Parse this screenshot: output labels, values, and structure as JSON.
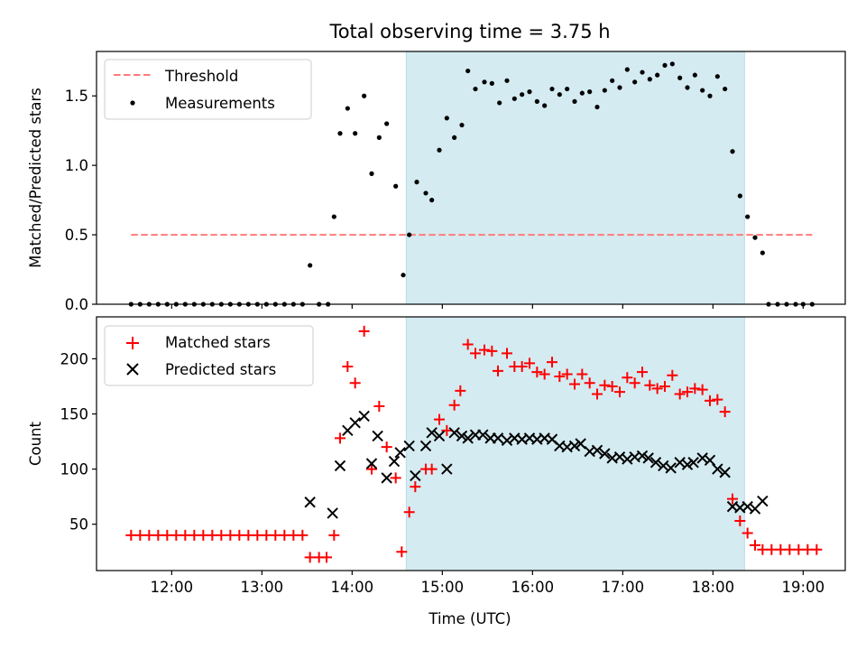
{
  "title": "Total observing time = 3.75 h",
  "colors": {
    "highlight": "#d4ebf1",
    "threshold": "#ff7b7b",
    "matched": "#ff0000",
    "predicted": "#000000",
    "measurement": "#000000"
  },
  "chart_data": [
    {
      "type": "scatter",
      "ylabel": "Matched/Predicted stars",
      "ylim": [
        0,
        1.82
      ],
      "xlim": [
        "11:10",
        "19:28"
      ],
      "yticks": [
        0.0,
        0.5,
        1.0,
        1.5
      ],
      "ytick_labels": [
        "0.0",
        "0.5",
        "1.0",
        "1.5"
      ],
      "highlight_span": [
        "14:36",
        "18:21"
      ],
      "threshold": {
        "value": 0.5,
        "x_range": [
          "11:33",
          "19:06"
        ]
      },
      "legend": {
        "position": "top-left",
        "entries": [
          "Threshold",
          "Measurements"
        ]
      },
      "series": [
        {
          "name": "Measurements",
          "points": [
            [
              "11:33",
              0
            ],
            [
              "11:39",
              0
            ],
            [
              "11:45",
              0
            ],
            [
              "11:51",
              0
            ],
            [
              "11:57",
              0
            ],
            [
              "12:03",
              0
            ],
            [
              "12:09",
              0
            ],
            [
              "12:15",
              0
            ],
            [
              "12:21",
              0
            ],
            [
              "12:27",
              0
            ],
            [
              "12:33",
              0
            ],
            [
              "12:39",
              0
            ],
            [
              "12:45",
              0
            ],
            [
              "12:51",
              0
            ],
            [
              "12:57",
              0
            ],
            [
              "13:03",
              0
            ],
            [
              "13:09",
              0
            ],
            [
              "13:15",
              0
            ],
            [
              "13:21",
              0
            ],
            [
              "13:27",
              0
            ],
            [
              "13:32",
              0.28
            ],
            [
              "13:38",
              0
            ],
            [
              "13:44",
              0
            ],
            [
              "13:48",
              0.63
            ],
            [
              "13:52",
              1.23
            ],
            [
              "13:57",
              1.41
            ],
            [
              "14:02",
              1.23
            ],
            [
              "14:08",
              1.5
            ],
            [
              "14:13",
              0.94
            ],
            [
              "14:18",
              1.2
            ],
            [
              "14:23",
              1.3
            ],
            [
              "14:29",
              0.85
            ],
            [
              "14:34",
              0.21
            ],
            [
              "14:38",
              0.5
            ],
            [
              "14:43",
              0.88
            ],
            [
              "14:49",
              0.8
            ],
            [
              "14:53",
              0.75
            ],
            [
              "14:58",
              1.11
            ],
            [
              "15:03",
              1.34
            ],
            [
              "15:08",
              1.2
            ],
            [
              "15:13",
              1.29
            ],
            [
              "15:17",
              1.68
            ],
            [
              "15:22",
              1.55
            ],
            [
              "15:28",
              1.6
            ],
            [
              "15:33",
              1.59
            ],
            [
              "15:38",
              1.45
            ],
            [
              "15:43",
              1.61
            ],
            [
              "15:48",
              1.48
            ],
            [
              "15:53",
              1.51
            ],
            [
              "15:58",
              1.53
            ],
            [
              "16:03",
              1.46
            ],
            [
              "16:08",
              1.43
            ],
            [
              "16:13",
              1.55
            ],
            [
              "16:18",
              1.51
            ],
            [
              "16:23",
              1.55
            ],
            [
              "16:28",
              1.46
            ],
            [
              "16:33",
              1.52
            ],
            [
              "16:38",
              1.53
            ],
            [
              "16:43",
              1.42
            ],
            [
              "16:48",
              1.54
            ],
            [
              "16:53",
              1.61
            ],
            [
              "16:58",
              1.56
            ],
            [
              "17:03",
              1.69
            ],
            [
              "17:08",
              1.6
            ],
            [
              "17:13",
              1.67
            ],
            [
              "17:18",
              1.62
            ],
            [
              "17:23",
              1.65
            ],
            [
              "17:28",
              1.72
            ],
            [
              "17:33",
              1.73
            ],
            [
              "17:38",
              1.63
            ],
            [
              "17:43",
              1.56
            ],
            [
              "17:48",
              1.65
            ],
            [
              "17:53",
              1.54
            ],
            [
              "17:58",
              1.5
            ],
            [
              "18:03",
              1.64
            ],
            [
              "18:08",
              1.55
            ],
            [
              "18:13",
              1.1
            ],
            [
              "18:18",
              0.78
            ],
            [
              "18:23",
              0.63
            ],
            [
              "18:28",
              0.48
            ],
            [
              "18:33",
              0.37
            ],
            [
              "18:37",
              0
            ],
            [
              "18:43",
              0
            ],
            [
              "18:49",
              0
            ],
            [
              "18:55",
              0
            ],
            [
              "19:00",
              0
            ],
            [
              "19:06",
              0
            ]
          ]
        }
      ]
    },
    {
      "type": "scatter",
      "xlabel": "Time (UTC)",
      "ylabel": "Count",
      "ylim": [
        8,
        238
      ],
      "xlim": [
        "11:10",
        "19:28"
      ],
      "yticks": [
        50,
        100,
        150,
        200
      ],
      "ytick_labels": [
        "50",
        "100",
        "150",
        "200"
      ],
      "xticks": [
        "12:00",
        "13:00",
        "14:00",
        "15:00",
        "16:00",
        "17:00",
        "18:00",
        "19:00"
      ],
      "highlight_span": [
        "14:36",
        "18:21"
      ],
      "legend": {
        "position": "top-left",
        "entries": [
          "Matched stars",
          "Predicted stars"
        ]
      },
      "series": [
        {
          "name": "Matched stars",
          "points": [
            [
              "11:33",
              40
            ],
            [
              "11:39",
              40
            ],
            [
              "11:45",
              40
            ],
            [
              "11:51",
              40
            ],
            [
              "11:57",
              40
            ],
            [
              "12:03",
              40
            ],
            [
              "12:09",
              40
            ],
            [
              "12:15",
              40
            ],
            [
              "12:21",
              40
            ],
            [
              "12:27",
              40
            ],
            [
              "12:33",
              40
            ],
            [
              "12:39",
              40
            ],
            [
              "12:45",
              40
            ],
            [
              "12:51",
              40
            ],
            [
              "12:57",
              40
            ],
            [
              "13:03",
              40
            ],
            [
              "13:09",
              40
            ],
            [
              "13:15",
              40
            ],
            [
              "13:21",
              40
            ],
            [
              "13:27",
              40
            ],
            [
              "13:32",
              20
            ],
            [
              "13:38",
              20
            ],
            [
              "13:43",
              20
            ],
            [
              "13:48",
              40
            ],
            [
              "13:52",
              128
            ],
            [
              "13:57",
              193
            ],
            [
              "14:02",
              178
            ],
            [
              "14:08",
              225
            ],
            [
              "14:13",
              100
            ],
            [
              "14:18",
              157
            ],
            [
              "14:23",
              120
            ],
            [
              "14:29",
              92
            ],
            [
              "14:33",
              25
            ],
            [
              "14:38",
              61
            ],
            [
              "14:42",
              84
            ],
            [
              "14:49",
              100
            ],
            [
              "14:53",
              100
            ],
            [
              "14:58",
              145
            ],
            [
              "15:03",
              135
            ],
            [
              "15:08",
              158
            ],
            [
              "15:12",
              171
            ],
            [
              "15:17",
              213
            ],
            [
              "15:22",
              205
            ],
            [
              "15:28",
              208
            ],
            [
              "15:33",
              207
            ],
            [
              "15:37",
              189
            ],
            [
              "15:43",
              205
            ],
            [
              "15:48",
              193
            ],
            [
              "15:53",
              193
            ],
            [
              "15:58",
              196
            ],
            [
              "16:03",
              188
            ],
            [
              "16:08",
              186
            ],
            [
              "16:13",
              197
            ],
            [
              "16:18",
              184
            ],
            [
              "16:23",
              186
            ],
            [
              "16:28",
              177
            ],
            [
              "16:33",
              186
            ],
            [
              "16:38",
              178
            ],
            [
              "16:43",
              168
            ],
            [
              "16:48",
              176
            ],
            [
              "16:53",
              175
            ],
            [
              "16:58",
              170
            ],
            [
              "17:03",
              183
            ],
            [
              "17:08",
              178
            ],
            [
              "17:13",
              188
            ],
            [
              "17:18",
              176
            ],
            [
              "17:23",
              173
            ],
            [
              "17:28",
              175
            ],
            [
              "17:33",
              185
            ],
            [
              "17:38",
              168
            ],
            [
              "17:43",
              170
            ],
            [
              "17:48",
              173
            ],
            [
              "17:53",
              172
            ],
            [
              "17:58",
              162
            ],
            [
              "18:03",
              163
            ],
            [
              "18:08",
              152
            ],
            [
              "18:13",
              73
            ],
            [
              "18:18",
              53
            ],
            [
              "18:23",
              42
            ],
            [
              "18:28",
              31
            ],
            [
              "18:33",
              27
            ],
            [
              "18:39",
              27
            ],
            [
              "18:45",
              27
            ],
            [
              "18:51",
              27
            ],
            [
              "18:57",
              27
            ],
            [
              "19:03",
              27
            ],
            [
              "19:09",
              27
            ]
          ]
        },
        {
          "name": "Predicted stars",
          "points": [
            [
              "13:32",
              70
            ],
            [
              "13:47",
              60
            ],
            [
              "13:52",
              103
            ],
            [
              "13:57",
              135
            ],
            [
              "14:02",
              142
            ],
            [
              "14:08",
              148
            ],
            [
              "14:13",
              105
            ],
            [
              "14:17",
              130
            ],
            [
              "14:23",
              92
            ],
            [
              "14:28",
              107
            ],
            [
              "14:32",
              115
            ],
            [
              "14:38",
              121
            ],
            [
              "14:42",
              94
            ],
            [
              "14:49",
              121
            ],
            [
              "14:53",
              133
            ],
            [
              "14:58",
              130
            ],
            [
              "15:03",
              100
            ],
            [
              "15:08",
              133
            ],
            [
              "15:13",
              130
            ],
            [
              "15:17",
              128
            ],
            [
              "15:22",
              131
            ],
            [
              "15:27",
              131
            ],
            [
              "15:32",
              128
            ],
            [
              "15:37",
              128
            ],
            [
              "15:43",
              126
            ],
            [
              "15:48",
              128
            ],
            [
              "15:53",
              127
            ],
            [
              "15:58",
              128
            ],
            [
              "16:03",
              127
            ],
            [
              "16:08",
              128
            ],
            [
              "16:13",
              127
            ],
            [
              "16:18",
              121
            ],
            [
              "16:23",
              120
            ],
            [
              "16:28",
              121
            ],
            [
              "16:32",
              123
            ],
            [
              "16:38",
              116
            ],
            [
              "16:43",
              117
            ],
            [
              "16:48",
              114
            ],
            [
              "16:53",
              110
            ],
            [
              "16:58",
              111
            ],
            [
              "17:03",
              109
            ],
            [
              "17:08",
              111
            ],
            [
              "17:13",
              112
            ],
            [
              "17:17",
              110
            ],
            [
              "17:22",
              106
            ],
            [
              "17:27",
              103
            ],
            [
              "17:32",
              101
            ],
            [
              "17:38",
              106
            ],
            [
              "17:43",
              104
            ],
            [
              "17:47",
              106
            ],
            [
              "17:53",
              110
            ],
            [
              "17:58",
              108
            ],
            [
              "18:03",
              100
            ],
            [
              "18:08",
              97
            ],
            [
              "18:13",
              66
            ],
            [
              "18:18",
              65
            ],
            [
              "18:23",
              66
            ],
            [
              "18:28",
              64
            ],
            [
              "18:33",
              71
            ]
          ]
        }
      ]
    }
  ]
}
